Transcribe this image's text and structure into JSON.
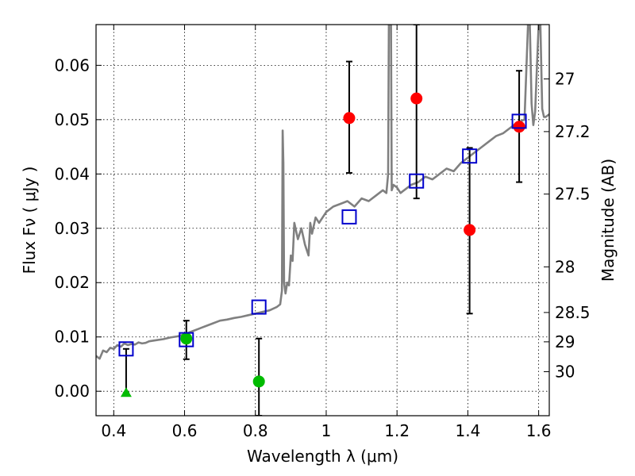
{
  "chart_data": {
    "type": "scatter",
    "xlabel": "Wavelength  λ (μm)",
    "ylabel": "Flux  Fν ( μJy )",
    "y2label": "Magnitude (AB)",
    "xlim": [
      0.35,
      1.63
    ],
    "ylim": [
      -0.0045,
      0.0675
    ],
    "grid": true,
    "x_ticks": [
      0.4,
      0.6,
      0.8,
      1.0,
      1.2,
      1.4,
      1.6
    ],
    "x_tick_labels": [
      "0.4",
      "0.6",
      "0.8",
      "1",
      "1.2",
      "1.4",
      "1.6"
    ],
    "y_ticks": [
      0.0,
      0.01,
      0.02,
      0.03,
      0.04,
      0.05,
      0.06
    ],
    "y_tick_labels": [
      "0.00",
      "0.01",
      "0.02",
      "0.03",
      "0.04",
      "0.05",
      "0.06"
    ],
    "y2_ticks": [
      {
        "label": "27",
        "flux": 0.0575
      },
      {
        "label": "27.2",
        "flux": 0.0478
      },
      {
        "label": "27.5",
        "flux": 0.0363
      },
      {
        "label": "28",
        "flux": 0.0229
      },
      {
        "label": "28.5",
        "flux": 0.0145
      },
      {
        "label": "29",
        "flux": 0.0091
      },
      {
        "label": "30",
        "flux": 0.0036
      }
    ],
    "colors": {
      "model": "#808080",
      "detections": "#ff0000",
      "green_points": "#00bb00",
      "model_photometry": "#0000cc",
      "errorbars": "#000000",
      "grid": "#000000"
    },
    "model_spectrum": {
      "x": [
        0.35,
        0.36,
        0.37,
        0.38,
        0.39,
        0.4,
        0.41,
        0.42,
        0.43,
        0.44,
        0.45,
        0.46,
        0.47,
        0.48,
        0.49,
        0.5,
        0.52,
        0.54,
        0.56,
        0.58,
        0.6,
        0.62,
        0.64,
        0.66,
        0.68,
        0.7,
        0.72,
        0.74,
        0.76,
        0.78,
        0.8,
        0.82,
        0.84,
        0.86,
        0.87,
        0.875,
        0.877,
        0.879,
        0.881,
        0.885,
        0.89,
        0.895,
        0.9,
        0.905,
        0.91,
        0.92,
        0.93,
        0.94,
        0.95,
        0.955,
        0.96,
        0.97,
        0.98,
        1.0,
        1.02,
        1.04,
        1.06,
        1.08,
        1.1,
        1.12,
        1.14,
        1.16,
        1.17,
        1.175,
        1.177,
        1.18,
        1.183,
        1.185,
        1.19,
        1.2,
        1.21,
        1.22,
        1.24,
        1.26,
        1.28,
        1.3,
        1.32,
        1.34,
        1.36,
        1.38,
        1.4,
        1.42,
        1.44,
        1.46,
        1.48,
        1.5,
        1.52,
        1.54,
        1.56,
        1.57,
        1.575,
        1.58,
        1.585,
        1.59,
        1.6,
        1.605,
        1.61,
        1.615,
        1.62,
        1.63
      ],
      "y": [
        0.0065,
        0.006,
        0.0075,
        0.0072,
        0.008,
        0.0078,
        0.0085,
        0.0082,
        0.0088,
        0.0085,
        0.0087,
        0.0086,
        0.009,
        0.0088,
        0.0089,
        0.0092,
        0.0094,
        0.0096,
        0.0099,
        0.0101,
        0.0105,
        0.011,
        0.0115,
        0.012,
        0.0125,
        0.013,
        0.0132,
        0.0135,
        0.0137,
        0.014,
        0.0143,
        0.0146,
        0.0149,
        0.0155,
        0.016,
        0.0185,
        0.048,
        0.042,
        0.02,
        0.018,
        0.02,
        0.0195,
        0.025,
        0.024,
        0.031,
        0.028,
        0.03,
        0.027,
        0.025,
        0.031,
        0.029,
        0.032,
        0.031,
        0.033,
        0.034,
        0.0345,
        0.035,
        0.034,
        0.0355,
        0.035,
        0.036,
        0.037,
        0.0365,
        0.04,
        0.0675,
        0.0675,
        0.0675,
        0.037,
        0.038,
        0.0375,
        0.0365,
        0.037,
        0.038,
        0.0385,
        0.0395,
        0.039,
        0.04,
        0.041,
        0.0405,
        0.042,
        0.043,
        0.044,
        0.045,
        0.046,
        0.047,
        0.0475,
        0.0485,
        0.0495,
        0.05,
        0.0675,
        0.0675,
        0.053,
        0.049,
        0.0515,
        0.0675,
        0.0675,
        0.052,
        0.0505,
        0.0505,
        0.051
      ]
    },
    "series": [
      {
        "marker": "circle",
        "color": "#ff0000",
        "points": [
          {
            "x": 1.065,
            "y": 0.0503,
            "err_low": 0.0402,
            "err_high": 0.0607
          },
          {
            "x": 1.255,
            "y": 0.0539,
            "err_low": 0.0355,
            "err_high": 0.0675
          },
          {
            "x": 1.405,
            "y": 0.0297,
            "err_low": 0.0143,
            "err_high": 0.0448
          },
          {
            "x": 1.545,
            "y": 0.0487,
            "err_low": 0.0385,
            "err_high": 0.059
          }
        ]
      },
      {
        "marker": "circle",
        "color": "#00bb00",
        "points": [
          {
            "x": 0.605,
            "y": 0.0097,
            "err_low": 0.0059,
            "err_high": 0.013
          },
          {
            "x": 0.81,
            "y": 0.0018,
            "err_low": -0.0045,
            "err_high": 0.0097
          }
        ]
      },
      {
        "marker": "triangle",
        "color": "#00bb00",
        "points": [
          {
            "x": 0.435,
            "y": -0.0003,
            "err_low": -0.0003,
            "err_high": 0.0078
          }
        ]
      },
      {
        "marker": "square-open",
        "color": "#0000cc",
        "points": [
          {
            "x": 0.435,
            "y": 0.0078
          },
          {
            "x": 0.605,
            "y": 0.0095
          },
          {
            "x": 0.81,
            "y": 0.0155
          },
          {
            "x": 1.065,
            "y": 0.0321
          },
          {
            "x": 1.255,
            "y": 0.0387
          },
          {
            "x": 1.405,
            "y": 0.0433
          },
          {
            "x": 1.545,
            "y": 0.0497
          }
        ]
      }
    ]
  }
}
